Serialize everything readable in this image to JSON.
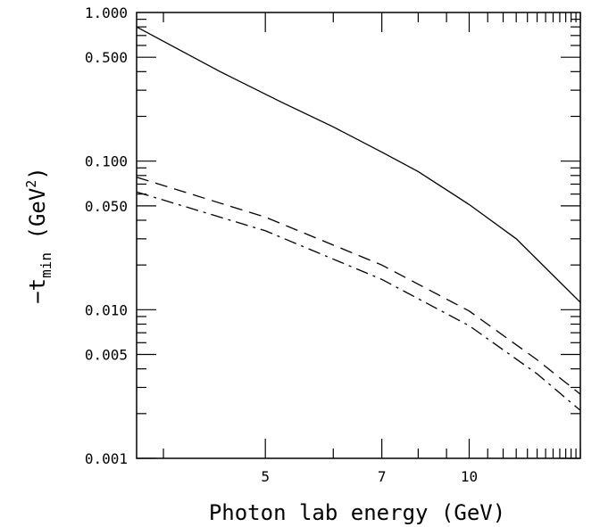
{
  "chart_data": {
    "type": "line",
    "xlabel": "Photon lab energy (GeV)",
    "ylabel": {
      "prefix": "−t",
      "subscript": "min",
      "units_open": " (GeV",
      "superscript": "2",
      "units_close": ")"
    },
    "x_scale": "reciprocal",
    "y_scale": "log",
    "xlim": [
      3.8,
      22
    ],
    "ylim": [
      0.001,
      1.0
    ],
    "x_ticks": [
      {
        "value": 5,
        "label": "5"
      },
      {
        "value": 7,
        "label": "7"
      },
      {
        "value": 10,
        "label": "10"
      }
    ],
    "y_ticks": [
      {
        "value": 0.001,
        "label": "0.001"
      },
      {
        "value": 0.005,
        "label": "0.005"
      },
      {
        "value": 0.01,
        "label": "0.010"
      },
      {
        "value": 0.05,
        "label": "0.050"
      },
      {
        "value": 0.1,
        "label": "0.100"
      },
      {
        "value": 0.5,
        "label": "0.500"
      },
      {
        "value": 1.0,
        "label": "1.000"
      }
    ],
    "grid": false,
    "series": [
      {
        "style": "solid",
        "x": [
          3.8,
          4.5,
          5.2,
          6.0,
          7.0,
          8.0,
          10.0,
          13.0,
          22.0
        ],
        "y": [
          0.8,
          0.4,
          0.25,
          0.17,
          0.115,
          0.085,
          0.051,
          0.03,
          0.0112
        ]
      },
      {
        "style": "dashed",
        "x": [
          3.8,
          5.0,
          7.0,
          10.0,
          15.0,
          22.0
        ],
        "y": [
          0.078,
          0.042,
          0.02,
          0.0098,
          0.0046,
          0.0027
        ]
      },
      {
        "style": "dashdot",
        "x": [
          3.8,
          5.0,
          7.0,
          10.0,
          15.0,
          22.0
        ],
        "y": [
          0.062,
          0.034,
          0.016,
          0.0078,
          0.0037,
          0.0021
        ]
      }
    ]
  }
}
